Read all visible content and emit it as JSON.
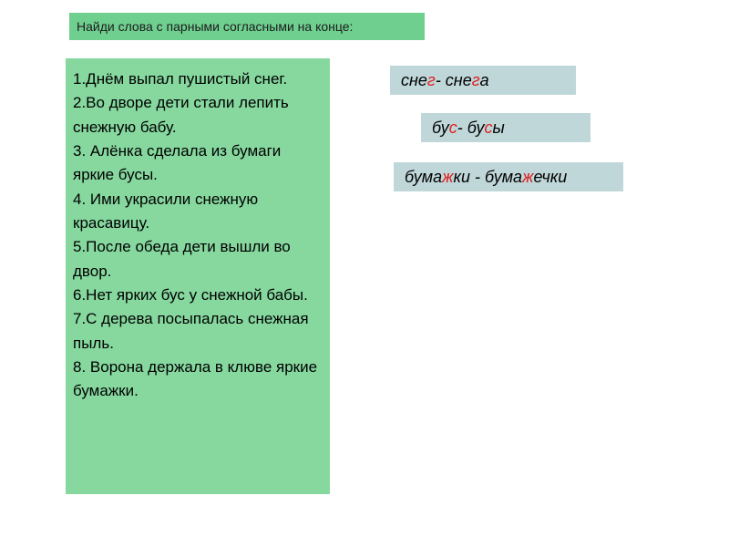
{
  "header": {
    "text": "Найди слова с парными согласными на конце:",
    "bg_color": "#6fcf8f",
    "font_size": 14
  },
  "main": {
    "bg_color": "#86d89f",
    "font_size": 17,
    "sentences": [
      "1.Днём выпал пушистый снег.",
      "2.Во дворе дети стали лепить снежную бабу.",
      "3. Алёнка сделала из бумаги яркие бусы.",
      "4. Ими украсили снежную красавицу.",
      "5.После обеда дети вышли во двор.",
      "6.Нет ярких бус у снежной бабы.",
      "7.С дерева посыпалась снежная пыль.",
      "8. Ворона держала в клюве яркие бумажки."
    ]
  },
  "answers": [
    {
      "parts": [
        {
          "text": "сне",
          "red": false
        },
        {
          "text": "г",
          "red": true
        },
        {
          "text": " - сне",
          "red": false
        },
        {
          "text": "г",
          "red": true
        },
        {
          "text": "а",
          "red": false
        }
      ],
      "bg_color": "#bfd7d9"
    },
    {
      "parts": [
        {
          "text": "бу",
          "red": false
        },
        {
          "text": "с",
          "red": true
        },
        {
          "text": " - бу",
          "red": false
        },
        {
          "text": "с",
          "red": true
        },
        {
          "text": "ы",
          "red": false
        }
      ],
      "bg_color": "#bfd7d9"
    },
    {
      "parts": [
        {
          "text": "бума",
          "red": false
        },
        {
          "text": "ж",
          "red": true
        },
        {
          "text": "ки - бума",
          "red": false
        },
        {
          "text": "ж",
          "red": true
        },
        {
          "text": "ечки",
          "red": false
        }
      ],
      "bg_color": "#bfd7d9"
    }
  ],
  "colors": {
    "header_bg": "#6fcf8f",
    "main_bg": "#86d89f",
    "answer_bg": "#bfd7d9",
    "red_text": "#e02020",
    "black_text": "#000000",
    "page_bg": "#ffffff"
  }
}
